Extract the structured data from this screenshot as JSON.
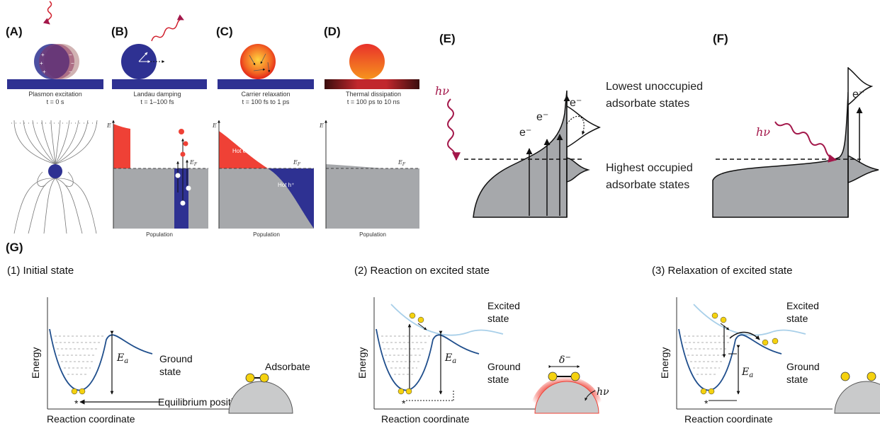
{
  "panel_labels": {
    "a": "(A)",
    "b": "(B)",
    "c": "(C)",
    "d": "(D)",
    "e": "(E)",
    "f": "(F)",
    "g": "(G)"
  },
  "captions": {
    "a_title": "Plasmon excitation",
    "a_time": "t = 0 s",
    "b_title": "Landau damping",
    "b_time": "t = 1–100 fs",
    "c_title": "Carrier relaxation",
    "c_time": "t = 100 fs to 1 ps",
    "d_title": "Thermal dissipation",
    "d_time": "t = 100 ps to 10 ns"
  },
  "small_plots": {
    "energy_axis": "E",
    "fermi_label": "E",
    "fermi_sub": "F",
    "population_label": "Population",
    "hot_electron": "Hot e⁻",
    "hot_hole": "Hot h⁺"
  },
  "panel_e": {
    "lumo_line1": "Lowest unoccupied",
    "lumo_line2": "adsorbate states",
    "homo_line1": "Highest occupied",
    "homo_line2": "adsorbate states",
    "photon": "hν",
    "electron": "e⁻"
  },
  "panel_f": {
    "photon": "hν",
    "electron": "e⁻"
  },
  "panel_g": {
    "steps": [
      "(1)  Initial state",
      "(2)  Reaction on excited state",
      "(3)  Relaxation of excited state"
    ],
    "y_axis": "Energy",
    "x_axis": "Reaction coordinate",
    "ground_line1": "Ground",
    "ground_line2": "state",
    "excited_line1": "Excited",
    "excited_line2": "state",
    "ea": "E",
    "ea_sub": "a",
    "equilibrium": "Equilibrium position",
    "adsorbate": "Adsorbate",
    "delta": "δ",
    "delta_sup": "−",
    "photon": "hν",
    "star": "*"
  },
  "colors": {
    "metal_blue": "#2e3192",
    "hot_red": "#ef4136",
    "fill_gray": "#a6a8ab",
    "photon_red": "#a3174a",
    "curve_blue": "#1f4e8c",
    "excited_blue": "#a8cfe9",
    "adsorbate_yellow": "#f5d20f"
  }
}
